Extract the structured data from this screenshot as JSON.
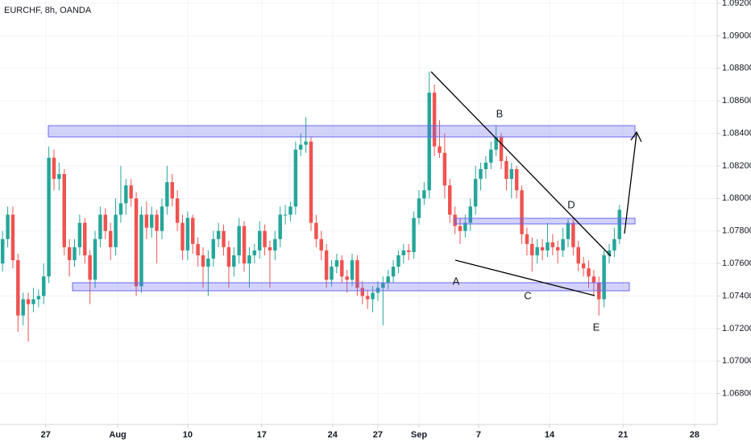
{
  "chart_data": {
    "type": "candlestick",
    "title": "EURCHF, 8h, OANDA",
    "up_color": "#26a69a",
    "down_color": "#ef5350",
    "grid": true,
    "ylim": [
      1.0661,
      1.0922
    ],
    "yticks": [
      {
        "value": 1.068,
        "label": "1.06800"
      },
      {
        "value": 1.07,
        "label": "1.07000"
      },
      {
        "value": 1.072,
        "label": "1.07200"
      },
      {
        "value": 1.074,
        "label": "1.07400"
      },
      {
        "value": 1.076,
        "label": "1.07600"
      },
      {
        "value": 1.078,
        "label": "1.07800"
      },
      {
        "value": 1.08,
        "label": "1.08000"
      },
      {
        "value": 1.082,
        "label": "1.08200"
      },
      {
        "value": 1.084,
        "label": "1.08400"
      },
      {
        "value": 1.086,
        "label": "1.08600"
      },
      {
        "value": 1.088,
        "label": "1.08800"
      },
      {
        "value": 1.09,
        "label": "1.09000"
      },
      {
        "value": 1.092,
        "label": "1.09200"
      }
    ],
    "xlim": [
      -0.5,
      139
    ],
    "xticks": [
      {
        "value": 8.4,
        "label": "27"
      },
      {
        "value": 22.4,
        "label": "Aug"
      },
      {
        "value": 36,
        "label": "10"
      },
      {
        "value": 50.4,
        "label": "17"
      },
      {
        "value": 64.2,
        "label": "24"
      },
      {
        "value": 73,
        "label": "27"
      },
      {
        "value": 81,
        "label": "Sep"
      },
      {
        "value": 92.6,
        "label": "7"
      },
      {
        "value": 106.4,
        "label": "14"
      },
      {
        "value": 120.7,
        "label": "21"
      },
      {
        "value": 134.6,
        "label": "28"
      }
    ],
    "annotations": [
      "A",
      "B",
      "C",
      "D",
      "E"
    ],
    "candles": [
      [
        1.076,
        1.078,
        1.0755,
        1.0775
      ],
      [
        1.0775,
        1.0795,
        1.077,
        1.079
      ],
      [
        1.079,
        1.0795,
        1.0757,
        1.0762
      ],
      [
        1.0762,
        1.0766,
        1.0718,
        1.0728
      ],
      [
        1.0728,
        1.0742,
        1.0722,
        1.0738
      ],
      [
        1.0738,
        1.0742,
        1.0712,
        1.0735
      ],
      [
        1.0735,
        1.0745,
        1.073,
        1.0738
      ],
      [
        1.0738,
        1.0744,
        1.0733,
        1.074
      ],
      [
        1.074,
        1.076,
        1.0735,
        1.0752
      ],
      [
        1.0752,
        1.0832,
        1.0748,
        1.0825
      ],
      [
        1.0825,
        1.083,
        1.0805,
        1.0812
      ],
      [
        1.0812,
        1.0822,
        1.0805,
        1.0815
      ],
      [
        1.0815,
        1.0818,
        1.0765,
        1.077
      ],
      [
        1.077,
        1.0775,
        1.0752,
        1.0762
      ],
      [
        1.0762,
        1.0775,
        1.0758,
        1.077
      ],
      [
        1.077,
        1.079,
        1.0765,
        1.0785
      ],
      [
        1.0785,
        1.0788,
        1.076,
        1.0765
      ],
      [
        1.0765,
        1.0768,
        1.0735,
        1.075
      ],
      [
        1.075,
        1.078,
        1.0745,
        1.0775
      ],
      [
        1.0775,
        1.0795,
        1.077,
        1.079
      ],
      [
        1.079,
        1.0794,
        1.0775,
        1.078
      ],
      [
        1.078,
        1.0785,
        1.0762,
        1.077
      ],
      [
        1.077,
        1.08,
        1.0765,
        1.079
      ],
      [
        1.079,
        1.082,
        1.0785,
        1.0797
      ],
      [
        1.0797,
        1.0812,
        1.079,
        1.0808
      ],
      [
        1.0808,
        1.0812,
        1.0795,
        1.08
      ],
      [
        1.08,
        1.0804,
        1.074,
        1.0746
      ],
      [
        1.0746,
        1.0795,
        1.0742,
        1.079
      ],
      [
        1.079,
        1.0798,
        1.0775,
        1.0782
      ],
      [
        1.0782,
        1.0795,
        1.0776,
        1.079
      ],
      [
        1.079,
        1.0793,
        1.076,
        1.078
      ],
      [
        1.078,
        1.08,
        1.0775,
        1.0795
      ],
      [
        1.0795,
        1.082,
        1.079,
        1.081
      ],
      [
        1.081,
        1.0815,
        1.0795,
        1.08
      ],
      [
        1.08,
        1.0805,
        1.078,
        1.0785
      ],
      [
        1.0785,
        1.079,
        1.0762,
        1.0768
      ],
      [
        1.0768,
        1.0792,
        1.0762,
        1.0788
      ],
      [
        1.0788,
        1.079,
        1.0766,
        1.0772
      ],
      [
        1.0772,
        1.0776,
        1.0758,
        1.0765
      ],
      [
        1.0765,
        1.077,
        1.0745,
        1.0758
      ],
      [
        1.0758,
        1.0768,
        1.074,
        1.0763
      ],
      [
        1.0763,
        1.078,
        1.0758,
        1.0775
      ],
      [
        1.0775,
        1.0785,
        1.077,
        1.078
      ],
      [
        1.078,
        1.0784,
        1.0765,
        1.077
      ],
      [
        1.077,
        1.0774,
        1.0745,
        1.0758
      ],
      [
        1.0758,
        1.077,
        1.0752,
        1.0765
      ],
      [
        1.0765,
        1.0788,
        1.076,
        1.0783
      ],
      [
        1.0783,
        1.0786,
        1.0755,
        1.076
      ],
      [
        1.076,
        1.077,
        1.0745,
        1.0765
      ],
      [
        1.0765,
        1.0772,
        1.076,
        1.0768
      ],
      [
        1.0768,
        1.0786,
        1.0763,
        1.078
      ],
      [
        1.078,
        1.0784,
        1.0765,
        1.077
      ],
      [
        1.077,
        1.0774,
        1.0745,
        1.0768
      ],
      [
        1.0768,
        1.078,
        1.0762,
        1.0775
      ],
      [
        1.0775,
        1.0795,
        1.077,
        1.079
      ],
      [
        1.079,
        1.0796,
        1.0784,
        1.079
      ],
      [
        1.079,
        1.0798,
        1.0786,
        1.0795
      ],
      [
        1.0795,
        1.0835,
        1.079,
        1.083
      ],
      [
        1.083,
        1.084,
        1.0826,
        1.0833
      ],
      [
        1.0833,
        1.085,
        1.0828,
        1.0835
      ],
      [
        1.0835,
        1.0838,
        1.078,
        1.0785
      ],
      [
        1.0785,
        1.079,
        1.077,
        1.0775
      ],
      [
        1.0775,
        1.078,
        1.0762,
        1.0768
      ],
      [
        1.0768,
        1.0772,
        1.0745,
        1.075
      ],
      [
        1.075,
        1.0762,
        1.0746,
        1.0758
      ],
      [
        1.0758,
        1.0766,
        1.0754,
        1.0762
      ],
      [
        1.0762,
        1.0765,
        1.0748,
        1.0752
      ],
      [
        1.0752,
        1.0756,
        1.0742,
        1.075
      ],
      [
        1.075,
        1.0766,
        1.0746,
        1.0762
      ],
      [
        1.0762,
        1.0765,
        1.074,
        1.0745
      ],
      [
        1.0745,
        1.0749,
        1.0735,
        1.074
      ],
      [
        1.074,
        1.0744,
        1.0732,
        1.0738
      ],
      [
        1.0738,
        1.0746,
        1.073,
        1.0742
      ],
      [
        1.0742,
        1.0749,
        1.0737,
        1.0745
      ],
      [
        1.0745,
        1.0752,
        1.0722,
        1.0748
      ],
      [
        1.0748,
        1.0756,
        1.0744,
        1.0752
      ],
      [
        1.0752,
        1.0762,
        1.0748,
        1.0758
      ],
      [
        1.0758,
        1.0768,
        1.0754,
        1.0765
      ],
      [
        1.0765,
        1.0772,
        1.076,
        1.0768
      ],
      [
        1.0768,
        1.0772,
        1.0762,
        1.0767
      ],
      [
        1.0767,
        1.0792,
        1.0763,
        1.0788
      ],
      [
        1.0788,
        1.0805,
        1.0784,
        1.08
      ],
      [
        1.08,
        1.081,
        1.0796,
        1.0805
      ],
      [
        1.0805,
        1.0878,
        1.08,
        1.0865
      ],
      [
        1.0865,
        1.087,
        1.0826,
        1.0832
      ],
      [
        1.0832,
        1.0848,
        1.0825,
        1.0828
      ],
      [
        1.0828,
        1.084,
        1.08,
        1.0808
      ],
      [
        1.0808,
        1.0812,
        1.0785,
        1.079
      ],
      [
        1.079,
        1.0795,
        1.0778,
        1.0783
      ],
      [
        1.0783,
        1.0788,
        1.0772,
        1.078
      ],
      [
        1.078,
        1.079,
        1.0776,
        1.0785
      ],
      [
        1.0785,
        1.08,
        1.078,
        1.0795
      ],
      [
        1.0795,
        1.082,
        1.079,
        1.0812
      ],
      [
        1.0812,
        1.0822,
        1.0805,
        1.0818
      ],
      [
        1.0818,
        1.0826,
        1.0812,
        1.0822
      ],
      [
        1.0822,
        1.0835,
        1.0818,
        1.083
      ],
      [
        1.083,
        1.0845,
        1.0826,
        1.0838
      ],
      [
        1.0838,
        1.084,
        1.0818,
        1.0823
      ],
      [
        1.0823,
        1.0826,
        1.0805,
        1.0812
      ],
      [
        1.0812,
        1.0822,
        1.08,
        1.0818
      ],
      [
        1.0818,
        1.082,
        1.08,
        1.0805
      ],
      [
        1.0805,
        1.0808,
        1.0772,
        1.0778
      ],
      [
        1.0778,
        1.0782,
        1.0765,
        1.0772
      ],
      [
        1.0772,
        1.0776,
        1.0755,
        1.0765
      ],
      [
        1.0765,
        1.0775,
        1.076,
        1.077
      ],
      [
        1.077,
        1.0775,
        1.0762,
        1.0768
      ],
      [
        1.0768,
        1.0785,
        1.0764,
        1.0773
      ],
      [
        1.0773,
        1.0778,
        1.0765,
        1.077
      ],
      [
        1.077,
        1.0774,
        1.076,
        1.0768
      ],
      [
        1.0768,
        1.0782,
        1.0764,
        1.0775
      ],
      [
        1.0775,
        1.0788,
        1.077,
        1.0785
      ],
      [
        1.0785,
        1.0788,
        1.0765,
        1.077
      ],
      [
        1.077,
        1.0774,
        1.0755,
        1.076
      ],
      [
        1.076,
        1.0764,
        1.0752,
        1.0757
      ],
      [
        1.0757,
        1.0762,
        1.0745,
        1.0752
      ],
      [
        1.0752,
        1.0756,
        1.074,
        1.0748
      ],
      [
        1.0748,
        1.0752,
        1.0728,
        1.0738
      ],
      [
        1.0738,
        1.0768,
        1.0733,
        1.0765
      ],
      [
        1.0765,
        1.0772,
        1.076,
        1.0768
      ],
      [
        1.0768,
        1.0782,
        1.0764,
        1.0775
      ],
      [
        1.0775,
        1.0796,
        1.0772,
        1.0793
      ]
    ]
  }
}
